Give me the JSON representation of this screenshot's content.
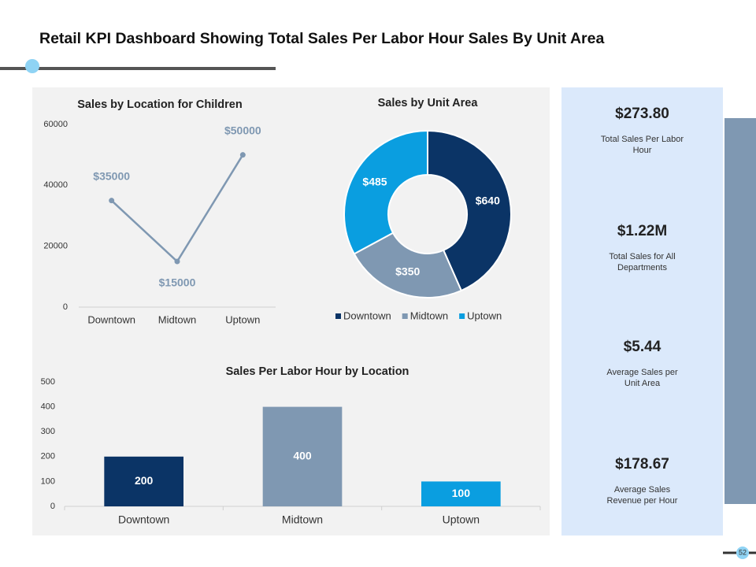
{
  "title": "Retail KPI Dashboard Showing Total Sales Per Labor Hour Sales By Unit Area",
  "chart_data": [
    {
      "type": "line",
      "title": "Sales by Location for Children",
      "categories": [
        "Downtown",
        "Midtown",
        "Uptown"
      ],
      "values": [
        35000,
        15000,
        50000
      ],
      "value_labels": [
        "$35000",
        "$15000",
        "$50000"
      ],
      "color": "#7f98b2",
      "ylim": [
        0,
        60000
      ],
      "yticks": [
        0,
        20000,
        40000,
        60000
      ]
    },
    {
      "type": "donut",
      "title": "Sales by Unit Area",
      "categories": [
        "Downtown",
        "Midtown",
        "Uptown"
      ],
      "values": [
        640,
        350,
        485
      ],
      "value_labels": [
        "$640",
        "$350",
        "$485"
      ],
      "colors": [
        "#0b3466",
        "#7f98b2",
        "#0a9ee0"
      ]
    },
    {
      "type": "bar",
      "title": "Sales Per Labor Hour by Location",
      "categories": [
        "Downtown",
        "Midtown",
        "Uptown"
      ],
      "values": [
        200,
        400,
        100
      ],
      "colors": [
        "#0b3466",
        "#7f98b2",
        "#0a9ee0"
      ],
      "ylim": [
        0,
        500
      ],
      "yticks": [
        0,
        100,
        200,
        300,
        400,
        500
      ]
    }
  ],
  "kpis": [
    {
      "value": "$273.80",
      "label": "Total Sales Per Labor Hour"
    },
    {
      "value": "$1.22M",
      "label": "Total Sales for All Departments"
    },
    {
      "value": "$5.44",
      "label": "Average Sales per Unit Area"
    },
    {
      "value": "$178.67",
      "label": "Average Sales Revenue per Hour"
    }
  ],
  "page_number": "52"
}
